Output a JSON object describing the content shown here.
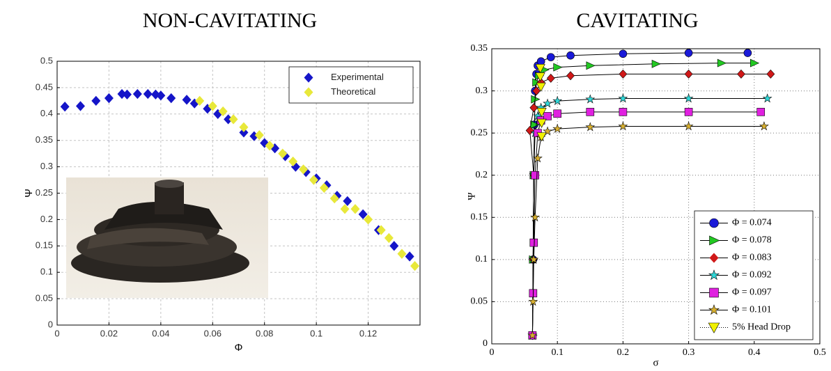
{
  "chart_data": [
    {
      "type": "scatter",
      "title": "NON-CAVITATING",
      "x_label": "Φ",
      "y_label": "Ψ",
      "xlim": [
        0,
        0.14
      ],
      "xticks": [
        0,
        0.02,
        0.04,
        0.06,
        0.08,
        0.1,
        0.12
      ],
      "ylim": [
        0,
        0.5
      ],
      "yticks": [
        0,
        0.05,
        0.1,
        0.15,
        0.2,
        0.25,
        0.3,
        0.35,
        0.4,
        0.45,
        0.5
      ],
      "grid": true,
      "legend": "top-right",
      "series": [
        {
          "name": "Experimental",
          "color": "#1515c8",
          "marker": "diamond",
          "x": [
            0.003,
            0.009,
            0.015,
            0.02,
            0.025,
            0.027,
            0.031,
            0.035,
            0.038,
            0.04,
            0.044,
            0.05,
            0.053,
            0.058,
            0.062,
            0.066,
            0.072,
            0.076,
            0.08,
            0.084,
            0.088,
            0.092,
            0.096,
            0.1,
            0.104,
            0.108,
            0.112,
            0.118,
            0.124,
            0.13,
            0.136
          ],
          "values": [
            0.414,
            0.415,
            0.425,
            0.43,
            0.438,
            0.437,
            0.438,
            0.438,
            0.437,
            0.435,
            0.43,
            0.427,
            0.42,
            0.41,
            0.4,
            0.39,
            0.365,
            0.358,
            0.345,
            0.335,
            0.32,
            0.3,
            0.29,
            0.278,
            0.265,
            0.245,
            0.235,
            0.21,
            0.18,
            0.15,
            0.13
          ]
        },
        {
          "name": "Theoretical",
          "color": "#e8e83a",
          "marker": "diamond",
          "x": [
            0.055,
            0.06,
            0.064,
            0.068,
            0.072,
            0.078,
            0.082,
            0.087,
            0.091,
            0.095,
            0.099,
            0.103,
            0.107,
            0.111,
            0.115,
            0.12,
            0.125,
            0.128,
            0.133,
            0.138
          ],
          "values": [
            0.425,
            0.415,
            0.405,
            0.39,
            0.375,
            0.36,
            0.34,
            0.325,
            0.31,
            0.295,
            0.275,
            0.26,
            0.24,
            0.22,
            0.22,
            0.2,
            0.18,
            0.165,
            0.135,
            0.112
          ]
        }
      ]
    },
    {
      "type": "line",
      "title": "CAVITATING",
      "x_label": "σ",
      "y_label": "Ψ",
      "xlim": [
        0,
        0.5
      ],
      "xticks": [
        0,
        0.1,
        0.2,
        0.3,
        0.4,
        0.5
      ],
      "ylim": [
        0,
        0.35
      ],
      "yticks": [
        0,
        0.05,
        0.1,
        0.15,
        0.2,
        0.25,
        0.3,
        0.35
      ],
      "grid": true,
      "legend": "bottom-right",
      "series": [
        {
          "name": "Φ = 0.074",
          "color": "#1a1ad8",
          "marker": "circle",
          "line_style": "solid",
          "x": [
            0.062,
            0.063,
            0.064,
            0.065,
            0.066,
            0.068,
            0.07,
            0.075,
            0.09,
            0.12,
            0.2,
            0.3,
            0.39
          ],
          "values": [
            0.01,
            0.1,
            0.2,
            0.26,
            0.3,
            0.32,
            0.33,
            0.335,
            0.34,
            0.342,
            0.344,
            0.345,
            0.345
          ]
        },
        {
          "name": "Φ = 0.078",
          "color": "#22c822",
          "marker": "triangle-right",
          "line_style": "solid",
          "x": [
            0.062,
            0.063,
            0.064,
            0.065,
            0.066,
            0.068,
            0.072,
            0.08,
            0.1,
            0.15,
            0.25,
            0.35,
            0.4
          ],
          "values": [
            0.01,
            0.1,
            0.2,
            0.26,
            0.29,
            0.31,
            0.318,
            0.325,
            0.328,
            0.33,
            0.332,
            0.333,
            0.333
          ]
        },
        {
          "name": "Φ = 0.083",
          "color": "#d01818",
          "marker": "diamond",
          "line_style": "solid",
          "x": [
            0.062,
            0.063,
            0.064,
            0.058,
            0.064,
            0.068,
            0.075,
            0.09,
            0.12,
            0.2,
            0.3,
            0.38,
            0.425
          ],
          "values": [
            0.01,
            0.1,
            0.2,
            0.253,
            0.28,
            0.3,
            0.31,
            0.315,
            0.318,
            0.32,
            0.32,
            0.32,
            0.32
          ]
        },
        {
          "name": "Φ = 0.092",
          "color": "#30d8d8",
          "marker": "star",
          "line_style": "solid",
          "x": [
            0.062,
            0.063,
            0.064,
            0.066,
            0.07,
            0.075,
            0.085,
            0.1,
            0.15,
            0.2,
            0.3,
            0.42
          ],
          "values": [
            0.01,
            0.1,
            0.2,
            0.25,
            0.27,
            0.28,
            0.285,
            0.288,
            0.29,
            0.291,
            0.291,
            0.291
          ]
        },
        {
          "name": "Φ = 0.097",
          "color": "#e020e0",
          "marker": "square",
          "line_style": "solid",
          "x": [
            0.062,
            0.063,
            0.064,
            0.066,
            0.07,
            0.075,
            0.085,
            0.1,
            0.15,
            0.2,
            0.3,
            0.41
          ],
          "values": [
            0.01,
            0.06,
            0.12,
            0.2,
            0.25,
            0.265,
            0.27,
            0.273,
            0.275,
            0.275,
            0.275,
            0.275
          ]
        },
        {
          "name": "Φ = 0.101",
          "color": "#d8b030",
          "marker": "star",
          "line_style": "solid",
          "x": [
            0.062,
            0.063,
            0.064,
            0.066,
            0.07,
            0.075,
            0.085,
            0.1,
            0.15,
            0.2,
            0.3,
            0.415
          ],
          "values": [
            0.01,
            0.05,
            0.1,
            0.15,
            0.22,
            0.245,
            0.252,
            0.255,
            0.257,
            0.258,
            0.258,
            0.258
          ]
        },
        {
          "name": "5% Head Drop",
          "color": "#f0f000",
          "marker": "triangle-down",
          "line_style": "none",
          "x": [
            0.074,
            0.074,
            0.075,
            0.076,
            0.076,
            0.076
          ],
          "values": [
            0.327,
            0.317,
            0.305,
            0.275,
            0.262,
            0.246
          ]
        }
      ]
    }
  ]
}
